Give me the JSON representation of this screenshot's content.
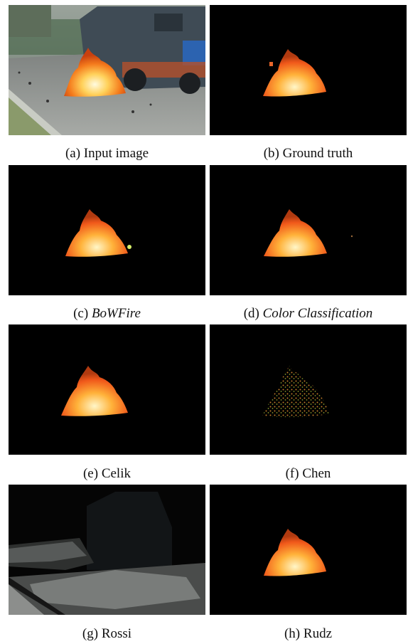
{
  "figure": {
    "panels": [
      {
        "letter": "(a)",
        "label": "Input image",
        "italic": false
      },
      {
        "letter": "(b)",
        "label": "Ground truth",
        "italic": false
      },
      {
        "letter": "(c)",
        "label": "BoWFire",
        "italic": true
      },
      {
        "letter": "(d)",
        "label": "Color Classification",
        "italic": true
      },
      {
        "letter": "(e)",
        "label": "Celik",
        "italic": false
      },
      {
        "letter": "(f)",
        "label": "Chen",
        "italic": false
      },
      {
        "letter": "(g)",
        "label": "Rossi",
        "italic": false
      },
      {
        "letter": "(h)",
        "label": "Rudz",
        "italic": false
      }
    ]
  },
  "colors": {
    "flame_core": "#fff6c8",
    "flame_mid": "#ffb23a",
    "flame_outer": "#f0581a",
    "mask_background": "#000000",
    "street": "#8a8f8c",
    "truck": "#3f4b55"
  }
}
